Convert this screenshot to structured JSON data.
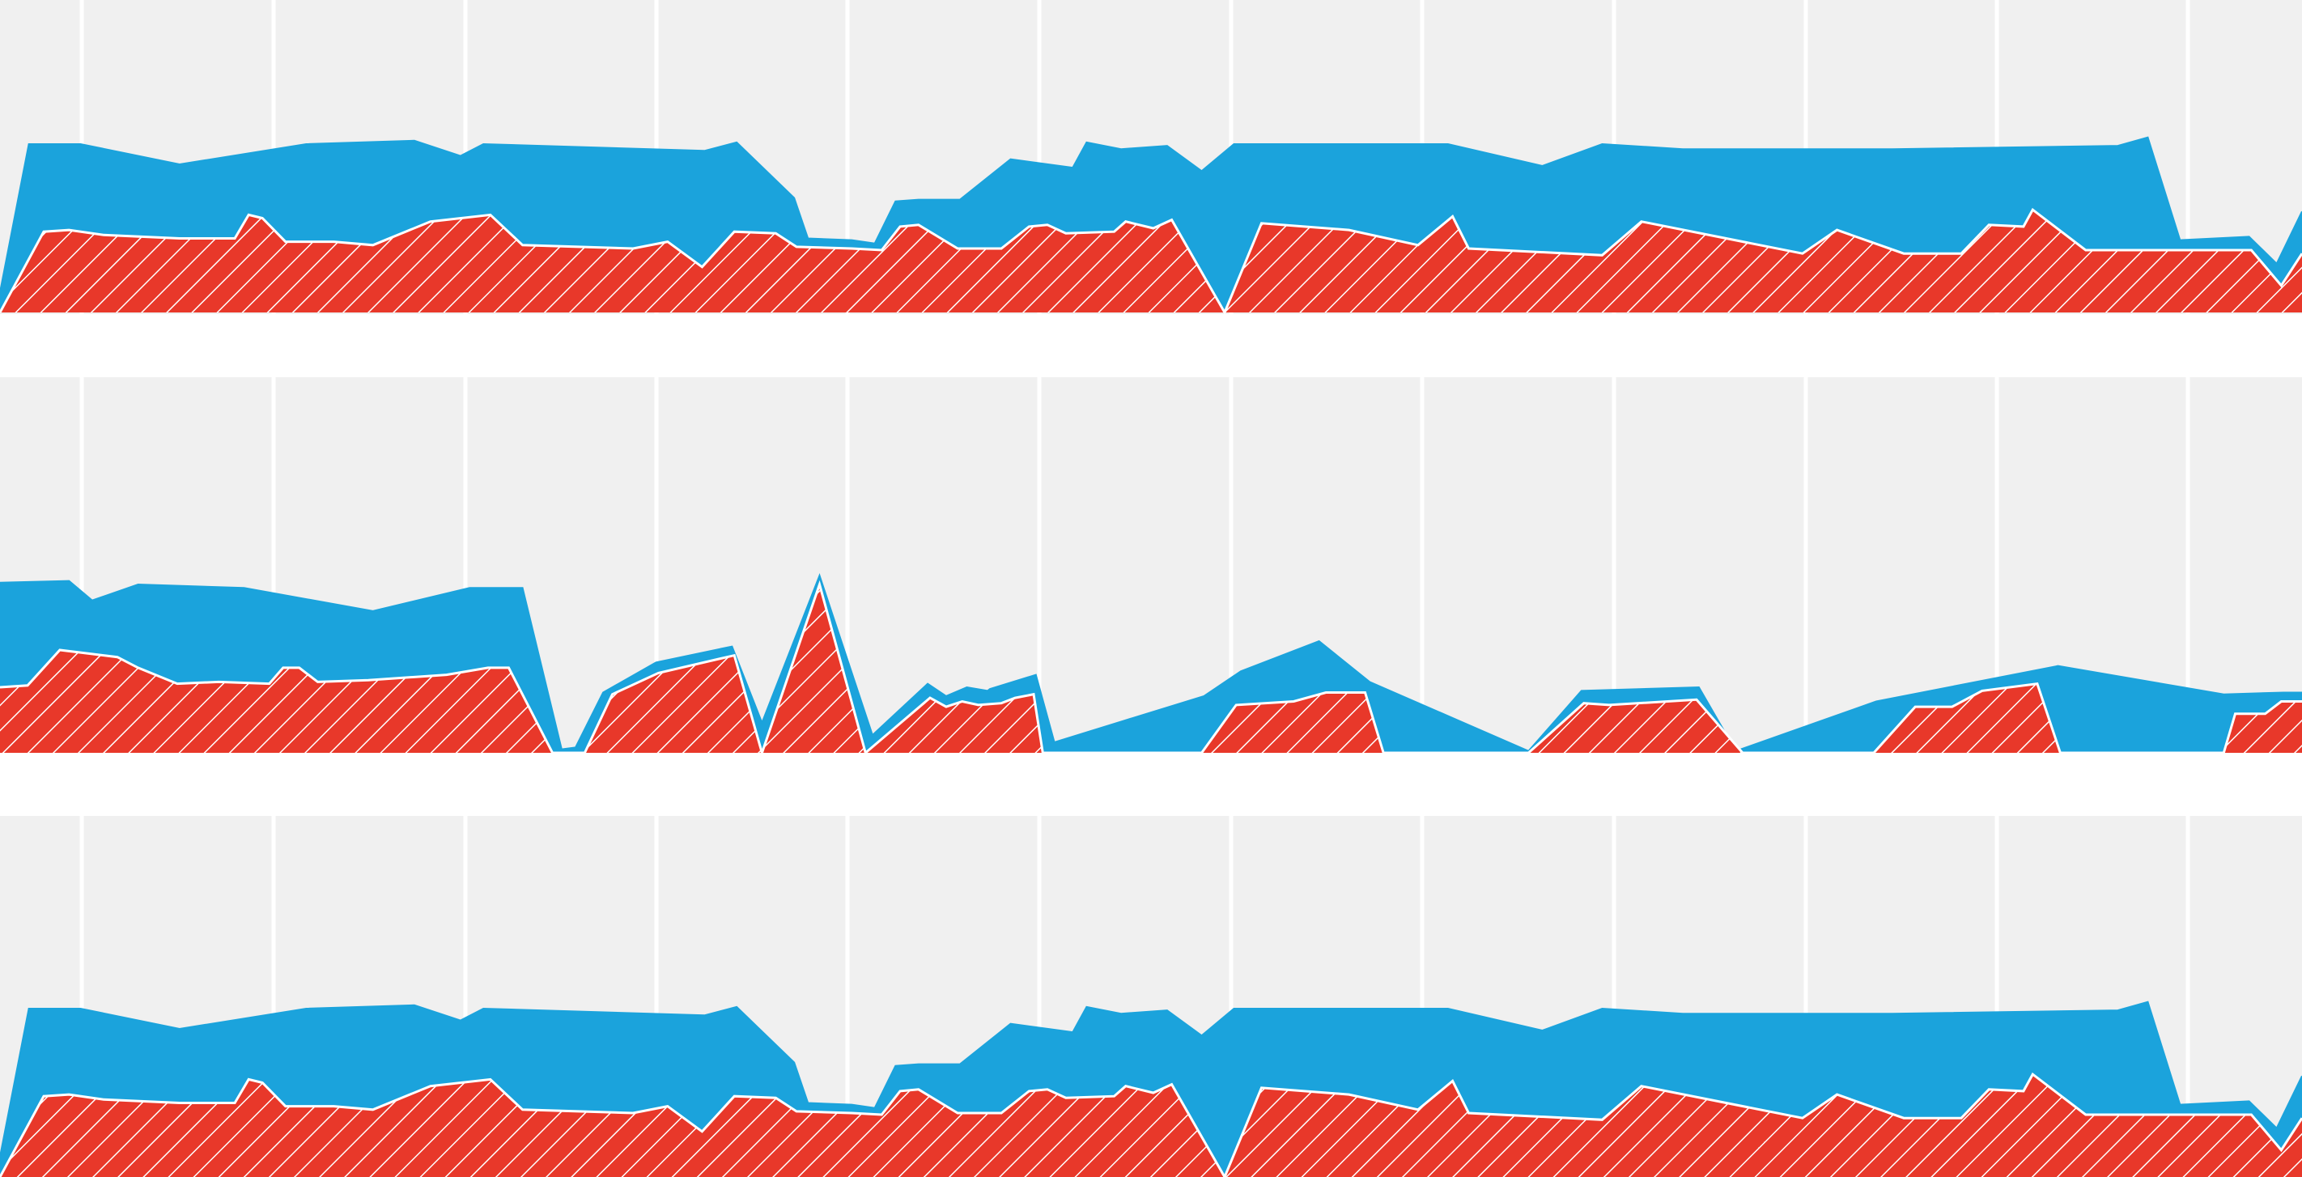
{
  "colors": {
    "background": "#f0f0f0",
    "gridline": "#ffffff",
    "series_a": "#1ba3dc",
    "series_b": "#e8382a",
    "hatch": "#ffffff",
    "separator": "#ffffff"
  },
  "chart_data": [
    {
      "type": "area",
      "stacked": false,
      "grid": "vertical",
      "legend": "none",
      "title": "",
      "xlabel": "",
      "ylabel": "",
      "xlim": [
        0,
        100
      ],
      "ylim": [
        0,
        100
      ],
      "series": [
        {
          "color": "#1ba3dc",
          "points": [
            [
              0,
              12
            ],
            [
              1.25,
              100
            ],
            [
              3.5,
              100
            ],
            [
              7.8,
              88
            ],
            [
              13.3,
              100
            ],
            [
              18,
              102
            ],
            [
              20,
              93
            ],
            [
              21,
              100
            ],
            [
              30.6,
              96
            ],
            [
              32,
              101
            ],
            [
              34.5,
              68
            ],
            [
              35.1,
              44
            ],
            [
              37,
              43
            ],
            [
              38,
              41
            ],
            [
              38.9,
              66
            ],
            [
              39.9,
              67
            ],
            [
              41.7,
              67
            ],
            [
              43.9,
              91
            ],
            [
              46.6,
              86
            ],
            [
              47.2,
              101
            ],
            [
              48.7,
              97
            ],
            [
              50.7,
              99
            ],
            [
              52.2,
              84
            ],
            [
              53.6,
              100
            ],
            [
              62.9,
              100
            ],
            [
              67,
              87
            ],
            [
              69.6,
              100
            ],
            [
              73.1,
              97
            ],
            [
              82.2,
              97
            ],
            [
              92,
              99
            ],
            [
              93.3,
              104
            ],
            [
              94.7,
              43
            ],
            [
              97.7,
              45
            ],
            [
              98.9,
              29
            ],
            [
              100,
              60
            ]
          ]
        },
        {
          "color": "#e8382a",
          "points": [
            [
              0,
              0
            ],
            [
              1.9,
              48
            ],
            [
              3,
              49
            ],
            [
              4.5,
              46
            ],
            [
              7.8,
              44
            ],
            [
              10.2,
              44
            ],
            [
              10.8,
              58
            ],
            [
              11.4,
              56
            ],
            [
              12.4,
              42
            ],
            [
              14.5,
              42
            ],
            [
              16.2,
              40
            ],
            [
              18.7,
              54
            ],
            [
              21.3,
              58
            ],
            [
              22.7,
              40
            ],
            [
              27.5,
              38
            ],
            [
              29,
              42
            ],
            [
              30.5,
              27
            ],
            [
              31.9,
              48
            ],
            [
              33.7,
              47
            ],
            [
              34.6,
              39
            ],
            [
              37,
              38
            ],
            [
              38.3,
              37
            ],
            [
              39.1,
              51
            ],
            [
              39.9,
              52
            ],
            [
              41.6,
              38
            ],
            [
              43.5,
              38
            ],
            [
              44.7,
              51
            ],
            [
              45.5,
              52
            ],
            [
              46.3,
              47
            ],
            [
              48.4,
              48
            ],
            [
              48.9,
              54
            ],
            [
              50.1,
              50
            ],
            [
              50.9,
              55
            ],
            [
              53.2,
              0
            ],
            [
              54.8,
              53
            ],
            [
              58.6,
              49
            ],
            [
              61.6,
              40
            ],
            [
              63.1,
              57
            ],
            [
              63.8,
              38
            ],
            [
              69.6,
              34
            ],
            [
              71.3,
              54
            ],
            [
              78.3,
              35
            ],
            [
              79.8,
              49
            ],
            [
              82.7,
              35
            ],
            [
              85.2,
              35
            ],
            [
              86.4,
              52
            ],
            [
              87.9,
              51
            ],
            [
              88.3,
              61
            ],
            [
              90.6,
              37
            ],
            [
              97.8,
              37
            ],
            [
              99.1,
              16
            ],
            [
              100,
              35
            ]
          ]
        }
      ]
    },
    {
      "type": "area",
      "stacked": false,
      "grid": "vertical",
      "legend": "none",
      "title": "",
      "xlabel": "",
      "ylabel": "",
      "xlim": [
        0,
        100
      ],
      "ylim": [
        0,
        100
      ],
      "series": [
        {
          "color": "#1ba3dc",
          "points": [
            [
              0,
              96
            ],
            [
              3,
              97
            ],
            [
              4,
              86
            ],
            [
              6,
              95
            ],
            [
              10.6,
              93
            ],
            [
              16.2,
              80
            ],
            [
              20.4,
              93
            ],
            [
              22.7,
              93
            ],
            [
              24.4,
              2
            ],
            [
              25,
              3
            ],
            [
              26.2,
              34
            ],
            [
              28.5,
              51
            ],
            [
              31.8,
              60
            ],
            [
              33.1,
              17
            ],
            [
              35.6,
              100
            ],
            [
              37.9,
              10
            ],
            [
              40.3,
              39
            ],
            [
              41.1,
              32
            ],
            [
              42,
              37
            ],
            [
              42.9,
              35
            ],
            [
              43,
              36
            ],
            [
              45,
              44
            ],
            [
              45.8,
              6
            ],
            [
              52.3,
              32
            ],
            [
              53.9,
              46
            ],
            [
              57.3,
              63
            ],
            [
              59.5,
              40
            ],
            [
              66.4,
              1
            ],
            [
              68.7,
              35
            ],
            [
              73.8,
              37
            ],
            [
              75.4,
              1
            ],
            [
              81.5,
              29
            ],
            [
              89.4,
              49
            ],
            [
              96.6,
              33
            ],
            [
              99.2,
              34
            ],
            [
              100,
              34
            ]
          ]
        },
        {
          "color": "#e8382a",
          "points": [
            [
              0,
              37
            ],
            [
              1.2,
              38
            ],
            [
              2.6,
              58
            ],
            [
              5.1,
              54
            ],
            [
              6,
              48
            ],
            [
              7.7,
              39
            ],
            [
              9.5,
              40
            ],
            [
              11.7,
              39
            ],
            [
              12.3,
              48
            ],
            [
              13,
              48
            ],
            [
              13.8,
              40
            ],
            [
              16,
              41
            ],
            [
              19.4,
              44
            ],
            [
              21.2,
              48
            ],
            [
              22.1,
              48
            ],
            [
              24,
              0
            ],
            [
              25.4,
              0
            ],
            [
              26.6,
              33
            ],
            [
              28.6,
              45
            ],
            [
              31.9,
              55
            ],
            [
              33.1,
              0
            ],
            [
              35.6,
              95
            ],
            [
              37.6,
              0
            ],
            [
              40.4,
              31
            ],
            [
              41.1,
              26
            ],
            [
              41.8,
              29
            ],
            [
              42.5,
              27
            ],
            [
              43.5,
              28
            ],
            [
              44.1,
              31
            ],
            [
              44.9,
              33
            ],
            [
              45.3,
              0
            ],
            [
              52.2,
              0
            ],
            [
              53.7,
              27
            ],
            [
              56.2,
              29
            ],
            [
              57.6,
              34
            ],
            [
              59.3,
              34
            ],
            [
              60.1,
              0
            ],
            [
              66.4,
              0
            ],
            [
              68.8,
              28
            ],
            [
              69.9,
              27
            ],
            [
              73.7,
              30
            ],
            [
              75.7,
              0
            ],
            [
              81.4,
              0
            ],
            [
              83.2,
              26
            ],
            [
              84.8,
              26
            ],
            [
              86.1,
              35
            ],
            [
              88.5,
              39
            ],
            [
              89.5,
              0
            ],
            [
              96.6,
              0
            ],
            [
              97.1,
              22
            ],
            [
              98.4,
              22
            ],
            [
              99.1,
              29
            ],
            [
              100,
              29
            ]
          ]
        }
      ]
    },
    {
      "type": "area",
      "stacked": false,
      "grid": "vertical",
      "legend": "none",
      "title": "",
      "xlabel": "",
      "ylabel": "",
      "xlim": [
        0,
        100
      ],
      "ylim": [
        0,
        100
      ],
      "series": [
        {
          "color": "#1ba3dc",
          "points": [
            [
              0,
              12
            ],
            [
              1.25,
              100
            ],
            [
              3.5,
              100
            ],
            [
              7.8,
              88
            ],
            [
              13.3,
              100
            ],
            [
              18,
              102
            ],
            [
              20,
              93
            ],
            [
              21,
              100
            ],
            [
              30.6,
              96
            ],
            [
              32,
              101
            ],
            [
              34.5,
              68
            ],
            [
              35.1,
              44
            ],
            [
              37,
              43
            ],
            [
              38,
              41
            ],
            [
              38.9,
              66
            ],
            [
              39.9,
              67
            ],
            [
              41.7,
              67
            ],
            [
              43.9,
              91
            ],
            [
              46.6,
              86
            ],
            [
              47.2,
              101
            ],
            [
              48.7,
              97
            ],
            [
              50.7,
              99
            ],
            [
              52.2,
              84
            ],
            [
              53.6,
              100
            ],
            [
              62.9,
              100
            ],
            [
              67,
              87
            ],
            [
              69.6,
              100
            ],
            [
              73.1,
              97
            ],
            [
              82.2,
              97
            ],
            [
              92,
              99
            ],
            [
              93.3,
              104
            ],
            [
              94.7,
              43
            ],
            [
              97.7,
              45
            ],
            [
              98.9,
              29
            ],
            [
              100,
              60
            ]
          ]
        },
        {
          "color": "#e8382a",
          "points": [
            [
              0,
              0
            ],
            [
              1.9,
              48
            ],
            [
              3,
              49
            ],
            [
              4.5,
              46
            ],
            [
              7.8,
              44
            ],
            [
              10.2,
              44
            ],
            [
              10.8,
              58
            ],
            [
              11.4,
              56
            ],
            [
              12.4,
              42
            ],
            [
              14.5,
              42
            ],
            [
              16.2,
              40
            ],
            [
              18.7,
              54
            ],
            [
              21.3,
              58
            ],
            [
              22.7,
              40
            ],
            [
              27.5,
              38
            ],
            [
              29,
              42
            ],
            [
              30.5,
              27
            ],
            [
              31.9,
              48
            ],
            [
              33.7,
              47
            ],
            [
              34.6,
              39
            ],
            [
              37,
              38
            ],
            [
              38.3,
              37
            ],
            [
              39.1,
              51
            ],
            [
              39.9,
              52
            ],
            [
              41.6,
              38
            ],
            [
              43.5,
              38
            ],
            [
              44.7,
              51
            ],
            [
              45.5,
              52
            ],
            [
              46.3,
              47
            ],
            [
              48.4,
              48
            ],
            [
              48.9,
              54
            ],
            [
              50.1,
              50
            ],
            [
              50.9,
              55
            ],
            [
              53.2,
              0
            ],
            [
              54.8,
              53
            ],
            [
              58.6,
              49
            ],
            [
              61.6,
              40
            ],
            [
              63.1,
              57
            ],
            [
              63.8,
              38
            ],
            [
              69.6,
              34
            ],
            [
              71.3,
              54
            ],
            [
              78.3,
              35
            ],
            [
              79.8,
              49
            ],
            [
              82.7,
              35
            ],
            [
              85.2,
              35
            ],
            [
              86.4,
              52
            ],
            [
              87.9,
              51
            ],
            [
              88.3,
              61
            ],
            [
              90.6,
              37
            ],
            [
              97.8,
              37
            ],
            [
              99.1,
              16
            ],
            [
              100,
              35
            ]
          ]
        }
      ]
    }
  ]
}
